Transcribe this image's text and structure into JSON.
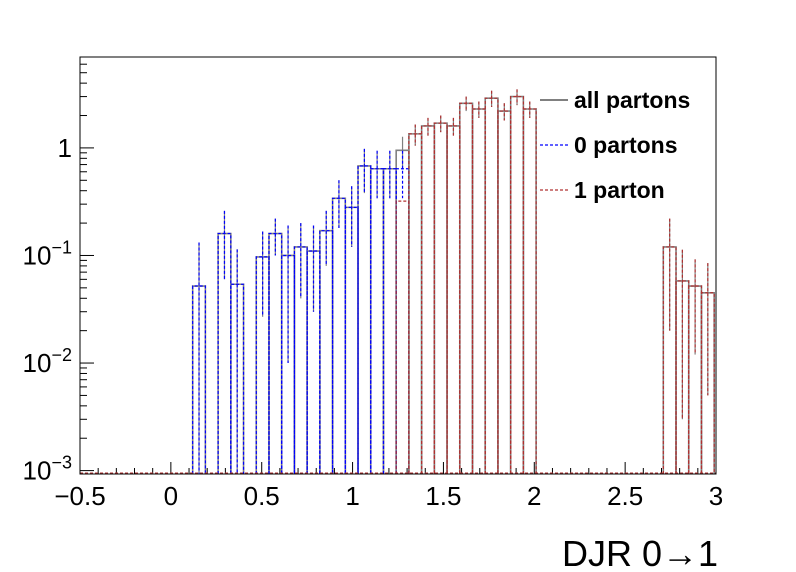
{
  "chart_data": {
    "type": "histogram",
    "title": "",
    "xlabel": "DJR 0→1",
    "ylabel": "",
    "x_range": [
      -0.5,
      3.0
    ],
    "y_range": [
      0.00093,
      7.0
    ],
    "y_scale": "log",
    "grid": false,
    "legend_position": "top-right",
    "bin_width": 0.07,
    "x_ticks": [
      {
        "value": -0.5,
        "label": "−0.5"
      },
      {
        "value": 0,
        "label": "0"
      },
      {
        "value": 0.5,
        "label": "0.5"
      },
      {
        "value": 1,
        "label": "1"
      },
      {
        "value": 1.5,
        "label": "1.5"
      },
      {
        "value": 2,
        "label": "2"
      },
      {
        "value": 2.5,
        "label": "2.5"
      },
      {
        "value": 3,
        "label": "3"
      }
    ],
    "y_ticks": [
      {
        "value": 0.001,
        "base": "10",
        "exp": "−3"
      },
      {
        "value": 0.01,
        "base": "10",
        "exp": "−2"
      },
      {
        "value": 0.1,
        "base": "10",
        "exp": "−1"
      },
      {
        "value": 1,
        "base": "1",
        "exp": ""
      }
    ],
    "series": [
      {
        "name": "all partons",
        "color": "#808080",
        "bins": [
          [
            0.12,
            0.19,
            0.052,
            0.08
          ],
          [
            0.26,
            0.33,
            0.16,
            0.1
          ],
          [
            0.33,
            0.4,
            0.054,
            0.06
          ],
          [
            0.47,
            0.54,
            0.097,
            0.07
          ],
          [
            0.54,
            0.61,
            0.16,
            0.06
          ],
          [
            0.61,
            0.68,
            0.1,
            0.09
          ],
          [
            0.68,
            0.75,
            0.12,
            0.08
          ],
          [
            0.75,
            0.82,
            0.11,
            0.08
          ],
          [
            0.82,
            0.89,
            0.17,
            0.09
          ],
          [
            0.89,
            0.96,
            0.34,
            0.16
          ],
          [
            0.96,
            1.03,
            0.28,
            0.16
          ],
          [
            1.03,
            1.1,
            0.68,
            0.3
          ],
          [
            1.1,
            1.17,
            0.64,
            0.3
          ],
          [
            1.17,
            1.24,
            0.64,
            0.3
          ],
          [
            1.24,
            1.31,
            0.95,
            0.32
          ],
          [
            1.31,
            1.38,
            1.35,
            0.3
          ],
          [
            1.38,
            1.45,
            1.6,
            0.3
          ],
          [
            1.45,
            1.52,
            1.7,
            0.3
          ],
          [
            1.52,
            1.59,
            1.6,
            0.3
          ],
          [
            1.59,
            1.66,
            2.6,
            0.4
          ],
          [
            1.66,
            1.73,
            2.3,
            0.4
          ],
          [
            1.73,
            1.8,
            2.9,
            0.5
          ],
          [
            1.8,
            1.87,
            2.2,
            0.4
          ],
          [
            1.87,
            1.94,
            3.0,
            0.5
          ],
          [
            1.94,
            2.01,
            2.3,
            0.4
          ],
          [
            2.71,
            2.78,
            0.12,
            0.1
          ],
          [
            2.78,
            2.85,
            0.058,
            0.055
          ],
          [
            2.85,
            2.92,
            0.052,
            0.04
          ],
          [
            2.92,
            2.99,
            0.045,
            0.04
          ]
        ]
      },
      {
        "name": "0 partons",
        "color": "#0000ff",
        "bins": [
          [
            0.12,
            0.19,
            0.052,
            0.08
          ],
          [
            0.26,
            0.33,
            0.16,
            0.1
          ],
          [
            0.33,
            0.4,
            0.054,
            0.06
          ],
          [
            0.47,
            0.54,
            0.097,
            0.07
          ],
          [
            0.54,
            0.61,
            0.16,
            0.06
          ],
          [
            0.61,
            0.68,
            0.1,
            0.09
          ],
          [
            0.68,
            0.75,
            0.12,
            0.08
          ],
          [
            0.75,
            0.82,
            0.11,
            0.08
          ],
          [
            0.82,
            0.89,
            0.17,
            0.09
          ],
          [
            0.89,
            0.96,
            0.34,
            0.16
          ],
          [
            0.96,
            1.03,
            0.28,
            0.16
          ],
          [
            1.03,
            1.1,
            0.68,
            0.3
          ],
          [
            1.1,
            1.17,
            0.64,
            0.3
          ],
          [
            1.17,
            1.24,
            0.64,
            0.3
          ],
          [
            1.24,
            1.31,
            0.64,
            0.3
          ]
        ]
      },
      {
        "name": "1 parton",
        "color": "#b03030",
        "bins": [
          [
            1.24,
            1.31,
            0.32,
            0.0
          ],
          [
            1.31,
            1.38,
            1.35,
            0.3
          ],
          [
            1.38,
            1.45,
            1.6,
            0.3
          ],
          [
            1.45,
            1.52,
            1.7,
            0.3
          ],
          [
            1.52,
            1.59,
            1.6,
            0.3
          ],
          [
            1.59,
            1.66,
            2.6,
            0.4
          ],
          [
            1.66,
            1.73,
            2.3,
            0.4
          ],
          [
            1.73,
            1.8,
            2.9,
            0.5
          ],
          [
            1.8,
            1.87,
            2.2,
            0.4
          ],
          [
            1.87,
            1.94,
            3.0,
            0.5
          ],
          [
            1.94,
            2.01,
            2.3,
            0.4
          ],
          [
            2.71,
            2.78,
            0.12,
            0.1
          ],
          [
            2.78,
            2.85,
            0.058,
            0.055
          ],
          [
            2.85,
            2.92,
            0.052,
            0.04
          ],
          [
            2.92,
            2.99,
            0.045,
            0.04
          ]
        ]
      }
    ]
  }
}
